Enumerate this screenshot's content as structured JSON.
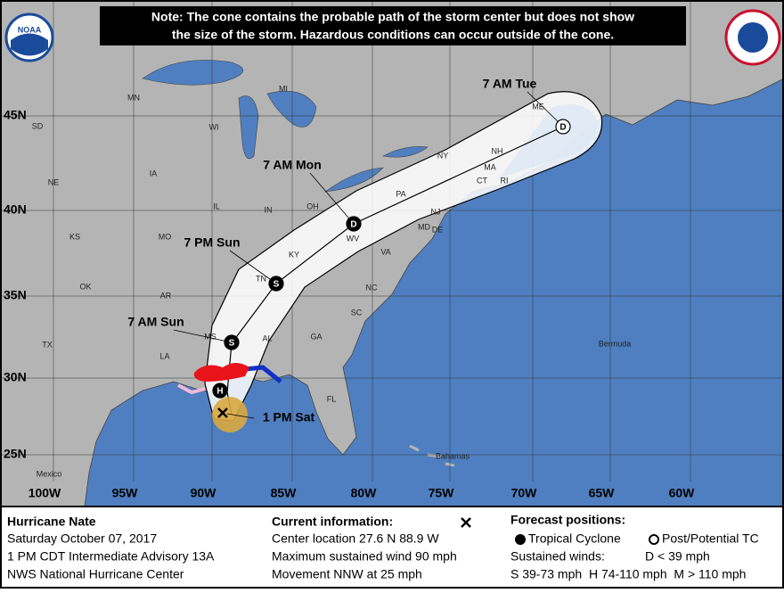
{
  "note": [
    "Note: The cone contains the probable path of the storm center but does not show",
    "the size of the storm. Hazardous conditions can occur outside of the cone."
  ],
  "logo": "NOAA",
  "lat_labels": [
    "45N",
    "40N",
    "35N",
    "30N",
    "25N"
  ],
  "lon_labels": [
    "100W",
    "95W",
    "90W",
    "85W",
    "80W",
    "75W",
    "70W",
    "65W",
    "60W"
  ],
  "regions": [
    "MN",
    "WI",
    "MI",
    "SD",
    "NE",
    "IA",
    "IL",
    "IN",
    "OH",
    "KS",
    "MO",
    "KY",
    "WV",
    "VA",
    "PA",
    "NY",
    "NH",
    "ME",
    "MA",
    "CT",
    "RI",
    "NJ",
    "DE",
    "MD",
    "OK",
    "AR",
    "TN",
    "NC",
    "SC",
    "GA",
    "AL",
    "MS",
    "LA",
    "TX",
    "FL",
    "Mexico",
    "Bahamas",
    "Bermuda"
  ],
  "forecast_points": [
    {
      "time": "7 AM Sun",
      "symbol": "S"
    },
    {
      "time": "7 PM Sun",
      "symbol": "S"
    },
    {
      "time": "7 AM Mon",
      "symbol": "D"
    },
    {
      "time": "7 AM Tue",
      "symbol": "D"
    },
    {
      "symbol": "H"
    }
  ],
  "current_time": "1 PM Sat",
  "info": {
    "storm": "Hurricane Nate",
    "date": "Saturday October 07, 2017",
    "advisory": "1 PM CDT Intermediate Advisory 13A",
    "center": "NWS National Hurricane Center"
  },
  "current": {
    "heading": "Current information:",
    "lines": [
      "Center location 27.6 N 88.9 W",
      "Maximum sustained wind 90 mph",
      "Movement NNW at 25 mph"
    ]
  },
  "forecast_legend": {
    "heading": "Forecast positions:",
    "tropical": "Tropical Cyclone",
    "post": "Post/Potential TC",
    "winds": "Sustained winds:",
    "d": "D < 39 mph",
    "scale": "S 39-73 mph  H 74-110 mph  M > 110 mph"
  }
}
